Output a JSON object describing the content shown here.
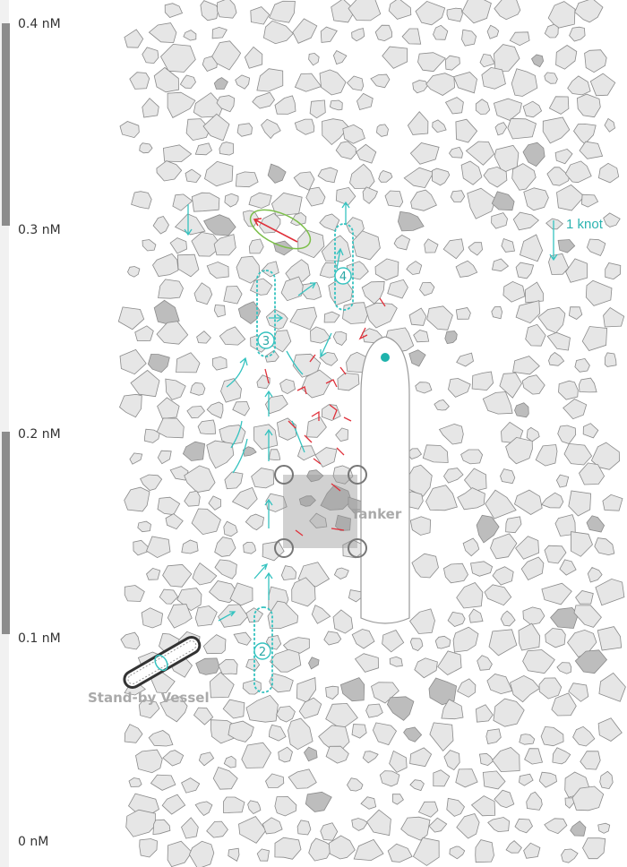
{
  "scale": {
    "labels": [
      {
        "text": "0.4 nM",
        "value": 0.4
      },
      {
        "text": "0.3 nM",
        "value": 0.3
      },
      {
        "text": "0.2 nM",
        "value": 0.2
      },
      {
        "text": "0.1 nM",
        "value": 0.1
      },
      {
        "text": "0 nM",
        "value": 0.0
      }
    ]
  },
  "vessels": {
    "tanker": {
      "label": "Tanker"
    },
    "standby": {
      "label": "Stand-by Vessel"
    }
  },
  "current": {
    "label": "1 knot"
  },
  "markers": [
    {
      "number": "2"
    },
    {
      "number": "3"
    },
    {
      "number": "4"
    }
  ],
  "colors": {
    "ice": "#e6e6e6",
    "ice_dark": "#bdbdbd",
    "ice_outline": "#8a8a8a",
    "cyan": "#35c3c0",
    "red": "#e0303a",
    "green": "#7cbf4a",
    "scale_bar": "#888888"
  }
}
